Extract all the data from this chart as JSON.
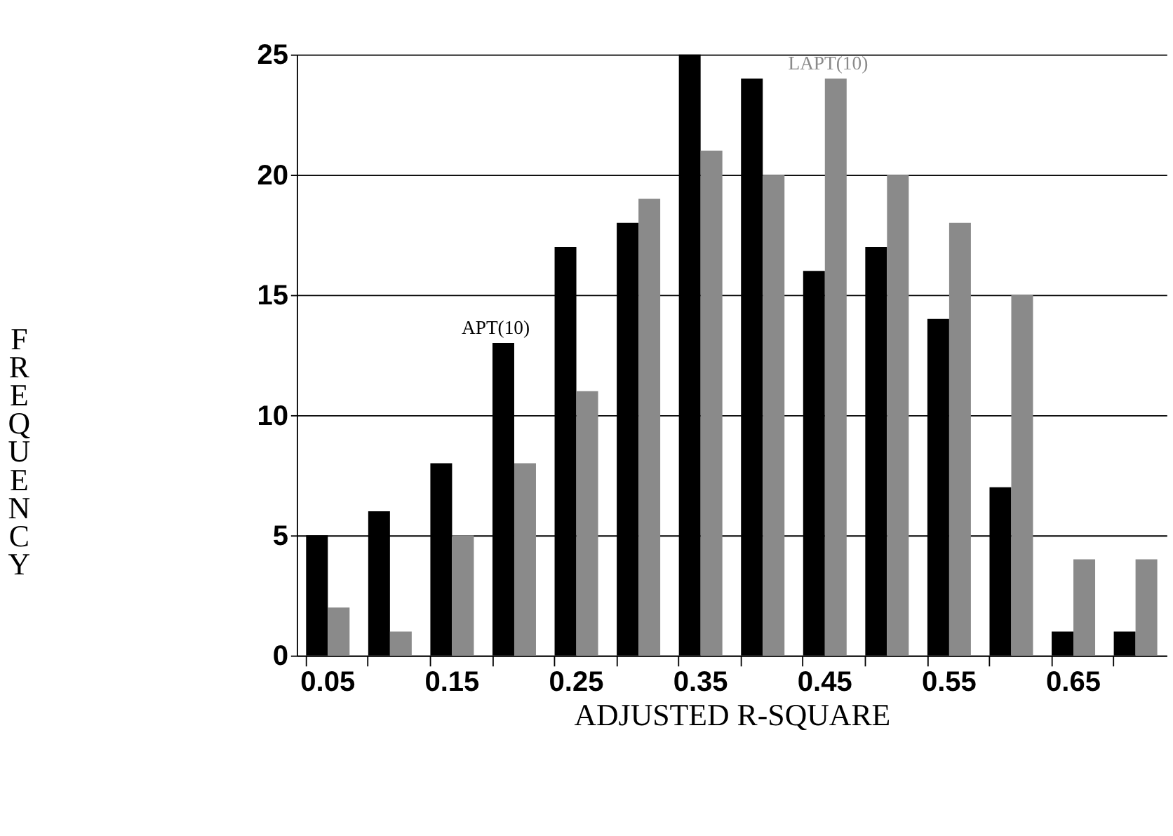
{
  "chart_data": {
    "type": "bar",
    "xlabel": "ADJUSTED R-SQUARE",
    "ylabel": "FREQUENCY",
    "categories": [
      "0.05",
      null,
      "0.15",
      null,
      "0.25",
      null,
      "0.35",
      null,
      "0.45",
      null,
      "0.55",
      null,
      "0.65",
      null
    ],
    "series": [
      {
        "name": "APT(10)",
        "color": "#000000",
        "values": [
          5,
          6,
          8,
          13,
          17,
          18,
          25,
          24,
          16,
          17,
          14,
          7,
          1,
          1
        ]
      },
      {
        "name": "LAPT(10)",
        "color": "#8a8a8a",
        "values": [
          2,
          1,
          5,
          8,
          11,
          19,
          21,
          20,
          24,
          20,
          18,
          15,
          4,
          4
        ]
      }
    ],
    "ylim": [
      0,
      25
    ],
    "yticks": [
      0,
      5,
      10,
      15,
      20,
      25
    ],
    "grid": "y",
    "legend": false
  }
}
